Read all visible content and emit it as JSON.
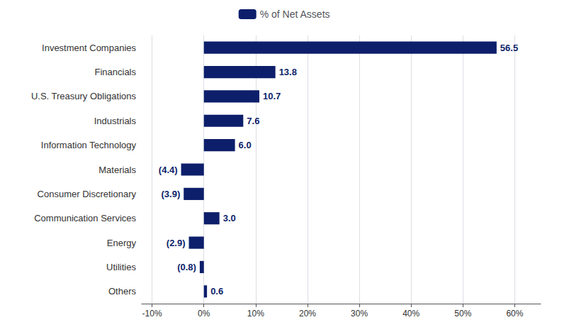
{
  "chart_data": {
    "type": "bar",
    "orientation": "horizontal",
    "categories": [
      "Others",
      "Utilities",
      "Energy",
      "Communication Services",
      "Consumer Discretionary",
      "Materials",
      "Information Technology",
      "Industrials",
      "U.S. Treasury Obligations",
      "Financials",
      "Investment Companies"
    ],
    "series": [
      {
        "name": "% of Net Assets",
        "color": "#0d1f6b",
        "values": [
          0.6,
          -0.8,
          -2.9,
          3.0,
          -3.9,
          -4.4,
          6.0,
          7.6,
          10.7,
          13.8,
          56.5
        ],
        "value_labels": [
          "0.6",
          "(0.8)",
          "(2.9)",
          "3.0",
          "(3.9)",
          "(4.4)",
          "6.0",
          "7.6",
          "10.7",
          "13.8",
          "56.5"
        ]
      }
    ],
    "xlim": [
      -12,
      65
    ],
    "xticks": [
      {
        "value": -10,
        "label": "-10%"
      },
      {
        "value": 0,
        "label": "0%"
      },
      {
        "value": 10,
        "label": "10%"
      },
      {
        "value": 20,
        "label": "20%"
      },
      {
        "value": 30,
        "label": "30%"
      },
      {
        "value": 40,
        "label": "40%"
      },
      {
        "value": 50,
        "label": "50%"
      },
      {
        "value": 60,
        "label": "60%"
      }
    ],
    "grid": true,
    "legend": "top",
    "data_labels": true
  }
}
